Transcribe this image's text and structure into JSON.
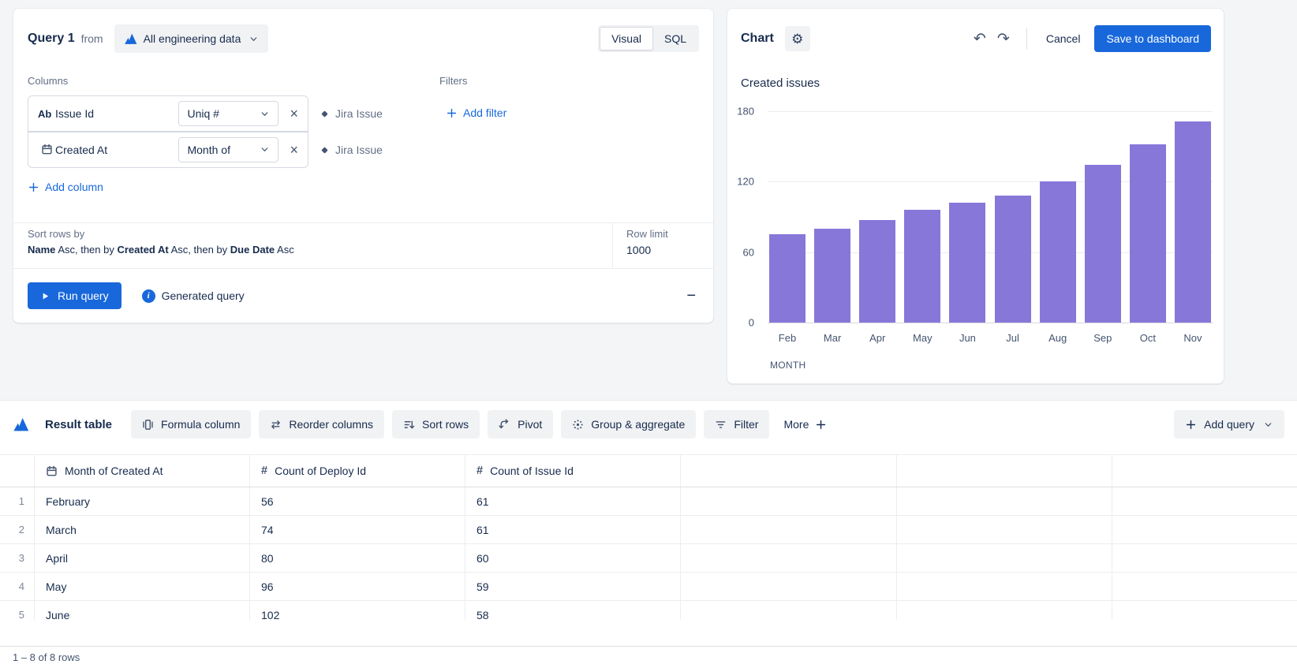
{
  "colors": {
    "accent": "#1868db",
    "bar_purple": "#8777d9",
    "text": "#172b4d",
    "muted": "#626f86"
  },
  "query_panel": {
    "title": "Query 1",
    "from": "from",
    "datasource": "All engineering data",
    "modes": {
      "visual": "Visual",
      "sql": "SQL"
    },
    "columns_label": "Columns",
    "filters_label": "Filters",
    "columns": [
      {
        "type_glyph": "Ab",
        "type_icon": "",
        "name": "Issue Id",
        "agg": "Uniq #",
        "source": "Jira Issue"
      },
      {
        "type_glyph": "",
        "type_icon": "calendar-icon",
        "name": "Created At",
        "agg": "Month of",
        "source": "Jira Issue"
      }
    ],
    "add_column": "Add column",
    "add_filter": "Add filter",
    "sort": {
      "label": "Sort rows by",
      "parts": [
        {
          "text": "Name",
          "bold": true
        },
        {
          "text": " Asc, then by ",
          "bold": false
        },
        {
          "text": "Created At",
          "bold": true
        },
        {
          "text": " Asc, then by ",
          "bold": false
        },
        {
          "text": "Due Date",
          "bold": true
        },
        {
          "text": " Asc",
          "bold": false
        }
      ]
    },
    "row_limit": {
      "label": "Row limit",
      "value": "1000"
    },
    "run_query": "Run query",
    "generated_query": "Generated query"
  },
  "chart_panel": {
    "title": "Chart",
    "cancel": "Cancel",
    "save": "Save to dashboard"
  },
  "chart_data": {
    "type": "bar",
    "title": "Created issues",
    "categories": [
      "Feb",
      "Mar",
      "Apr",
      "May",
      "Jun",
      "Jul",
      "Aug",
      "Sep",
      "Oct",
      "Nov"
    ],
    "values": [
      75,
      80,
      87,
      96,
      102,
      108,
      120,
      134,
      152,
      171
    ],
    "xlabel": "MONTH",
    "ylabel": "",
    "ylim": [
      0,
      180
    ],
    "yticks": [
      0,
      60,
      120,
      180
    ],
    "grid": true,
    "legend": false,
    "bar_color": "#8777d9"
  },
  "result_panel": {
    "title": "Result table",
    "toolbar": [
      {
        "icon": "formula-column-icon",
        "label": "Formula column"
      },
      {
        "icon": "reorder-columns-icon",
        "label": "Reorder columns"
      },
      {
        "icon": "sort-rows-icon",
        "label": "Sort rows"
      },
      {
        "icon": "pivot-icon",
        "label": "Pivot"
      },
      {
        "icon": "group-aggregate-icon",
        "label": "Group & aggregate"
      },
      {
        "icon": "filter-icon",
        "label": "Filter"
      }
    ],
    "more_label": "More",
    "add_query": "Add query",
    "table": {
      "headers": [
        {
          "icon": "calendar-icon",
          "label": "Month of Created At"
        },
        {
          "icon": "hash-icon",
          "label": "Count of Deploy Id"
        },
        {
          "icon": "hash-icon",
          "label": "Count of Issue Id"
        }
      ],
      "rows": [
        {
          "num": "1",
          "cells": [
            "February",
            "56",
            "61"
          ]
        },
        {
          "num": "2",
          "cells": [
            "March",
            "74",
            "61"
          ]
        },
        {
          "num": "3",
          "cells": [
            "April",
            "80",
            "60"
          ]
        },
        {
          "num": "4",
          "cells": [
            "May",
            "96",
            "59"
          ]
        },
        {
          "num": "5",
          "cells": [
            "June",
            "102",
            "58"
          ]
        }
      ]
    },
    "status": "1 – 8 of 8 rows"
  }
}
